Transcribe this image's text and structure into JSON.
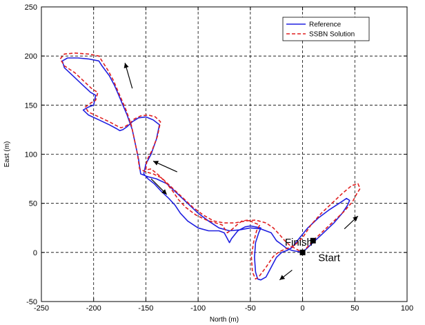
{
  "chart_data": {
    "type": "line",
    "title": "",
    "xlabel": "North (m)",
    "ylabel": "East (m)",
    "xlim": [
      -250,
      100
    ],
    "ylim": [
      -50,
      250
    ],
    "xticks": [
      -250,
      -200,
      -150,
      -100,
      -50,
      0,
      50,
      100
    ],
    "yticks": [
      -50,
      0,
      50,
      100,
      150,
      200,
      250
    ],
    "grid": true,
    "legend_position": "top-right",
    "series": [
      {
        "name": "Reference",
        "color": "#1f1fe0",
        "style": "solid",
        "x": [
          0,
          10,
          20,
          30,
          38,
          43,
          45,
          42,
          35,
          25,
          15,
          5,
          -5,
          -10,
          -15,
          -20,
          -25,
          -30,
          -35,
          -40,
          -43,
          -45,
          -46,
          -45,
          -42,
          -40,
          -45,
          -50,
          -55,
          -62,
          -65,
          -68,
          -70,
          -75,
          -80,
          -90,
          -100,
          -110,
          -117,
          -122,
          -128,
          -135,
          -142,
          -148,
          -152,
          -150,
          -145,
          -140,
          -137,
          -143,
          -150,
          -157,
          -163,
          -168,
          -172,
          -175,
          -178,
          -185,
          -195,
          -205,
          -210,
          -205,
          -200,
          -198,
          -203,
          -210,
          -220,
          -228,
          -230,
          -225,
          -215,
          -205,
          -195,
          -192,
          -185,
          -180,
          -176,
          -172,
          -168,
          -163,
          -160,
          -157,
          -155,
          -148,
          -140,
          -130,
          -120,
          -110,
          -100,
          -90,
          -80,
          -70,
          -60,
          -50,
          -40,
          -30,
          -25,
          -20,
          -15,
          -10,
          -5,
          0
        ],
        "y": [
          0,
          10,
          20,
          30,
          40,
          48,
          53,
          55,
          50,
          43,
          35,
          25,
          12,
          5,
          2,
          0,
          -5,
          -15,
          -25,
          -28,
          -27,
          -20,
          -5,
          10,
          20,
          25,
          26,
          27,
          26,
          22,
          18,
          14,
          10,
          20,
          22,
          22,
          25,
          32,
          40,
          48,
          55,
          62,
          70,
          75,
          80,
          90,
          100,
          115,
          130,
          135,
          138,
          137,
          133,
          128,
          125,
          124,
          126,
          130,
          135,
          140,
          145,
          148,
          150,
          160,
          163,
          170,
          180,
          188,
          195,
          198,
          198,
          197,
          195,
          190,
          180,
          170,
          160,
          150,
          140,
          125,
          110,
          95,
          80,
          77,
          75,
          70,
          60,
          50,
          40,
          32,
          25,
          22,
          23,
          25,
          24,
          20,
          12,
          8,
          4,
          2,
          1,
          0
        ]
      },
      {
        "name": "SSBN Solution",
        "color": "#e01f1f",
        "style": "dashed",
        "x": [
          0,
          10,
          20,
          30,
          40,
          48,
          52,
          55,
          53,
          47,
          38,
          28,
          18,
          8,
          0,
          -8,
          -15,
          -22,
          -28,
          -35,
          -42,
          -45,
          -48,
          -49,
          -47,
          -44,
          -41,
          -46,
          -52,
          -58,
          -63,
          -67,
          -72,
          -77,
          -83,
          -92,
          -102,
          -112,
          -119,
          -124,
          -130,
          -137,
          -145,
          -150,
          -149,
          -144,
          -139,
          -136,
          -141,
          -148,
          -155,
          -161,
          -166,
          -170,
          -174,
          -178,
          -185,
          -195,
          -205,
          -208,
          -203,
          -198,
          -196,
          -201,
          -208,
          -218,
          -228,
          -232,
          -228,
          -218,
          -205,
          -195,
          -192,
          -186,
          -181,
          -177,
          -173,
          -169,
          -164,
          -161,
          -158,
          -156,
          -150,
          -143,
          -135,
          -125,
          -115,
          -105,
          -95,
          -85,
          -75,
          -65,
          -55,
          -45,
          -35,
          -28,
          -22,
          -17,
          -12,
          -7,
          -2,
          0
        ],
        "y": [
          0,
          12,
          22,
          32,
          42,
          52,
          60,
          65,
          70,
          68,
          60,
          50,
          40,
          28,
          15,
          7,
          4,
          1,
          -4,
          -15,
          -25,
          -27,
          -20,
          -5,
          10,
          22,
          28,
          30,
          33,
          32,
          28,
          24,
          20,
          28,
          30,
          33,
          38,
          46,
          54,
          62,
          70,
          78,
          85,
          84,
          94,
          104,
          118,
          133,
          138,
          140,
          139,
          136,
          131,
          128,
          127,
          129,
          133,
          138,
          143,
          148,
          152,
          155,
          163,
          166,
          173,
          183,
          190,
          197,
          202,
          203,
          202,
          200,
          195,
          185,
          175,
          165,
          155,
          145,
          130,
          115,
          100,
          85,
          82,
          80,
          76,
          66,
          56,
          46,
          38,
          32,
          30,
          30,
          32,
          33,
          30,
          25,
          18,
          12,
          7,
          4,
          1,
          0
        ]
      }
    ],
    "annotations": [
      {
        "text": "Finish",
        "x": -17,
        "y": 7
      },
      {
        "text": "Start",
        "x": 15,
        "y": -9
      }
    ],
    "markers": [
      {
        "label": "start-marker",
        "x": 0,
        "y": 0
      },
      {
        "label": "finish-marker",
        "x": 10,
        "y": 12
      }
    ],
    "direction_arrows": [
      {
        "x1": -163,
        "y1": 167,
        "x2": -170,
        "y2": 193
      },
      {
        "x1": -145,
        "y1": 75,
        "x2": -130,
        "y2": 59
      },
      {
        "x1": -120,
        "y1": 82,
        "x2": -143,
        "y2": 93
      },
      {
        "x1": -10,
        "y1": -18,
        "x2": -22,
        "y2": -28
      },
      {
        "x1": 40,
        "y1": 24,
        "x2": 53,
        "y2": 37
      }
    ]
  }
}
